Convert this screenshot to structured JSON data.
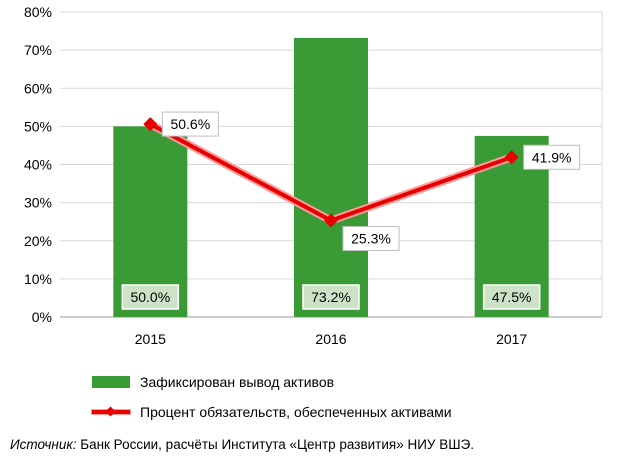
{
  "chart_data": {
    "type": "bar",
    "categories": [
      "2015",
      "2016",
      "2017"
    ],
    "series": [
      {
        "name": "Зафиксирован вывод активов",
        "type": "bar",
        "values": [
          50.0,
          73.2,
          47.5
        ],
        "labels": [
          "50.0%",
          "73.2%",
          "47.5%"
        ],
        "color": "#3a9a35"
      },
      {
        "name": "Процент обязательств, обеспеченных активами",
        "type": "line",
        "values": [
          50.6,
          25.3,
          41.9
        ],
        "labels": [
          "50.6%",
          "25.3%",
          "41.9%"
        ],
        "color": "#e60000"
      }
    ],
    "yticks": [
      "0%",
      "10%",
      "20%",
      "30%",
      "40%",
      "50%",
      "60%",
      "70%",
      "80%"
    ],
    "ylim": [
      0,
      80
    ],
    "grid": true,
    "legend": "bottom"
  },
  "source": {
    "label": "Источник:",
    "text": " Банк России, расчёты Института «Центр развития» НИУ ВШЭ."
  }
}
